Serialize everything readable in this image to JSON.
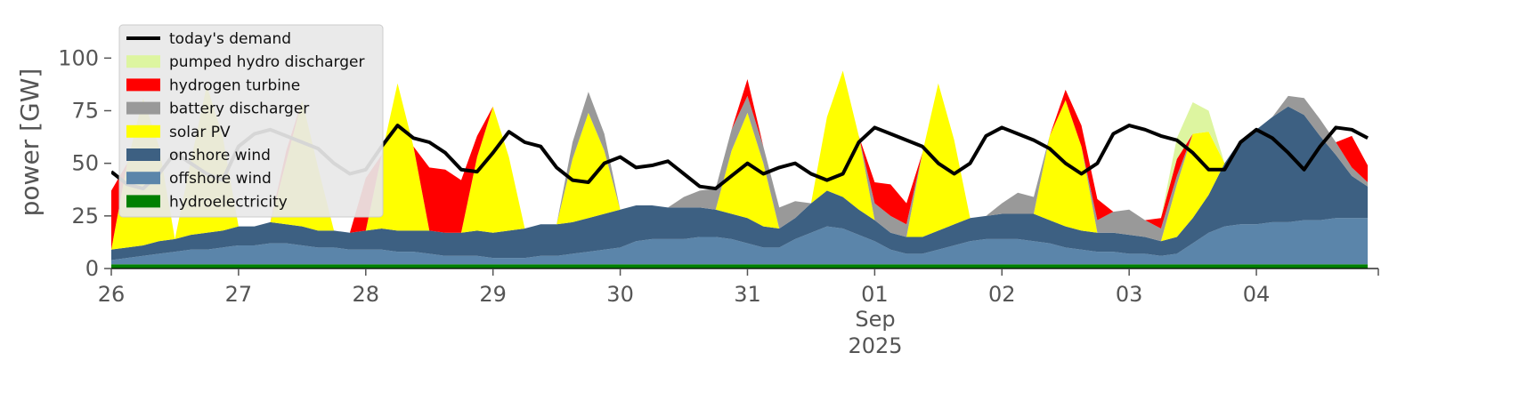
{
  "chart_data": {
    "type": "area",
    "title": "",
    "xlabel": "",
    "ylabel": "power [GW]",
    "ylim": [
      0,
      120
    ],
    "xlim": [
      "2025-08-26T00:00",
      "2025-09-04T23:00"
    ],
    "y_ticks": [
      "0",
      "25",
      "50",
      "75",
      "100"
    ],
    "x_ticks": [
      "26",
      "27",
      "28",
      "29",
      "30",
      "31",
      "01",
      "02",
      "03",
      "04"
    ],
    "x_month_label": "Sep",
    "x_year_label": "2025",
    "grid": false,
    "legend_position": "upper-left",
    "x_step_hours": 3,
    "x_start": "2025-08-26T00:00",
    "stack_order": [
      "hydroelectricity",
      "offshore wind",
      "onshore wind",
      "solar PV",
      "battery discharger",
      "hydrogen turbine",
      "pumped hydro discharger"
    ],
    "series": [
      {
        "name": "hydroelectricity",
        "color": "#008000",
        "values": [
          2,
          2,
          2,
          2,
          2,
          2,
          2,
          2,
          2,
          2,
          2,
          2,
          2,
          2,
          2,
          2,
          2,
          2,
          2,
          2,
          2,
          2,
          2,
          2,
          2,
          2,
          2,
          2,
          2,
          2,
          2,
          2,
          2,
          2,
          2,
          2,
          2,
          2,
          2,
          2,
          2,
          2,
          2,
          2,
          2,
          2,
          2,
          2,
          2,
          2,
          2,
          2,
          2,
          2,
          2,
          2,
          2,
          2,
          2,
          2,
          2,
          2,
          2,
          2,
          2,
          2,
          2,
          2,
          2,
          2,
          2,
          2,
          2,
          2,
          2,
          2,
          2,
          2,
          2,
          2
        ]
      },
      {
        "name": "offshore wind",
        "color": "#5b85aa",
        "values": [
          2,
          3,
          4,
          5,
          6,
          7,
          7,
          8,
          9,
          9,
          10,
          10,
          9,
          8,
          8,
          7,
          7,
          7,
          6,
          6,
          5,
          4,
          4,
          4,
          3,
          3,
          3,
          4,
          4,
          5,
          6,
          7,
          8,
          11,
          12,
          12,
          12,
          13,
          13,
          12,
          10,
          8,
          8,
          12,
          15,
          18,
          17,
          14,
          11,
          7,
          5,
          5,
          7,
          9,
          11,
          12,
          12,
          12,
          11,
          10,
          8,
          7,
          6,
          6,
          5,
          5,
          4,
          5,
          10,
          15,
          18,
          19,
          19,
          20,
          20,
          21,
          21,
          22,
          22,
          22
        ]
      },
      {
        "name": "onshore wind",
        "color": "#3d6082",
        "values": [
          5,
          5,
          5,
          6,
          6,
          7,
          8,
          8,
          9,
          9,
          10,
          9,
          9,
          8,
          8,
          8,
          9,
          10,
          10,
          10,
          11,
          11,
          11,
          12,
          12,
          13,
          14,
          15,
          15,
          15,
          16,
          17,
          18,
          17,
          16,
          15,
          15,
          14,
          13,
          12,
          12,
          10,
          9,
          10,
          14,
          17,
          15,
          12,
          10,
          8,
          8,
          8,
          9,
          10,
          11,
          11,
          12,
          12,
          13,
          11,
          10,
          9,
          9,
          9,
          9,
          8,
          7,
          8,
          12,
          18,
          30,
          40,
          45,
          50,
          55,
          50,
          40,
          30,
          20,
          15
        ]
      },
      {
        "name": "solar PV",
        "color": "#ffff00",
        "values": [
          0,
          40,
          70,
          45,
          0,
          35,
          70,
          45,
          0,
          0,
          0,
          30,
          60,
          30,
          0,
          0,
          0,
          35,
          70,
          40,
          0,
          0,
          0,
          35,
          60,
          35,
          0,
          0,
          0,
          30,
          50,
          30,
          0,
          0,
          0,
          0,
          0,
          0,
          0,
          30,
          50,
          30,
          0,
          0,
          0,
          35,
          60,
          35,
          0,
          0,
          0,
          40,
          70,
          40,
          0,
          0,
          0,
          0,
          0,
          40,
          60,
          40,
          0,
          0,
          0,
          0,
          0,
          25,
          40,
          30,
          0,
          0,
          0,
          0,
          0,
          0,
          0,
          0,
          0,
          0
        ]
      },
      {
        "name": "battery discharger",
        "color": "#999999",
        "values": [
          0,
          0,
          0,
          0,
          0,
          0,
          0,
          0,
          0,
          0,
          0,
          0,
          0,
          0,
          0,
          0,
          0,
          0,
          0,
          0,
          0,
          0,
          0,
          0,
          0,
          0,
          0,
          0,
          0,
          8,
          10,
          8,
          0,
          0,
          0,
          0,
          5,
          8,
          10,
          10,
          8,
          8,
          10,
          8,
          0,
          0,
          0,
          0,
          8,
          8,
          6,
          0,
          0,
          0,
          0,
          0,
          5,
          10,
          8,
          0,
          0,
          0,
          6,
          10,
          12,
          8,
          6,
          4,
          0,
          0,
          0,
          0,
          0,
          0,
          5,
          8,
          8,
          6,
          4,
          2
        ]
      },
      {
        "name": "hydrogen turbine",
        "color": "#ff0000",
        "values": [
          28,
          0,
          0,
          0,
          0,
          0,
          0,
          0,
          0,
          0,
          0,
          5,
          0,
          0,
          0,
          0,
          25,
          0,
          0,
          0,
          30,
          30,
          25,
          10,
          0,
          0,
          0,
          0,
          0,
          0,
          0,
          0,
          0,
          0,
          0,
          0,
          0,
          0,
          0,
          0,
          8,
          0,
          0,
          0,
          0,
          0,
          0,
          0,
          10,
          15,
          10,
          0,
          0,
          0,
          0,
          0,
          0,
          0,
          0,
          0,
          5,
          10,
          10,
          0,
          0,
          0,
          5,
          8,
          0,
          0,
          0,
          0,
          0,
          0,
          0,
          0,
          0,
          0,
          15,
          8
        ]
      },
      {
        "name": "pumped hydro discharger",
        "color": "#ddf5a0",
        "values": [
          0,
          0,
          0,
          0,
          0,
          0,
          0,
          0,
          0,
          0,
          0,
          0,
          0,
          0,
          0,
          0,
          0,
          0,
          0,
          0,
          0,
          0,
          0,
          0,
          0,
          0,
          0,
          0,
          0,
          0,
          0,
          0,
          0,
          0,
          0,
          0,
          0,
          0,
          0,
          0,
          0,
          0,
          0,
          0,
          0,
          0,
          0,
          0,
          0,
          0,
          0,
          0,
          0,
          0,
          0,
          0,
          0,
          0,
          0,
          0,
          0,
          0,
          0,
          0,
          0,
          0,
          0,
          10,
          15,
          10,
          0,
          0,
          0,
          0,
          0,
          0,
          0,
          0,
          0,
          0
        ]
      },
      {
        "name": "today's demand",
        "color": "#000000",
        "type": "line",
        "values": [
          46,
          40,
          38,
          45,
          55,
          50,
          45,
          42,
          58,
          64,
          66,
          63,
          60,
          57,
          50,
          45,
          47,
          58,
          68,
          62,
          60,
          55,
          47,
          46,
          55,
          65,
          60,
          58,
          48,
          42,
          41,
          50,
          53,
          48,
          49,
          51,
          45,
          39,
          38,
          44,
          50,
          45,
          48,
          50,
          45,
          42,
          45,
          60,
          67,
          64,
          61,
          58,
          50,
          45,
          50,
          63,
          67,
          64,
          61,
          57,
          50,
          45,
          50,
          64,
          68,
          66,
          63,
          61,
          55,
          47,
          47,
          60,
          66,
          62,
          55,
          47,
          58,
          67,
          66,
          62
        ]
      }
    ]
  }
}
